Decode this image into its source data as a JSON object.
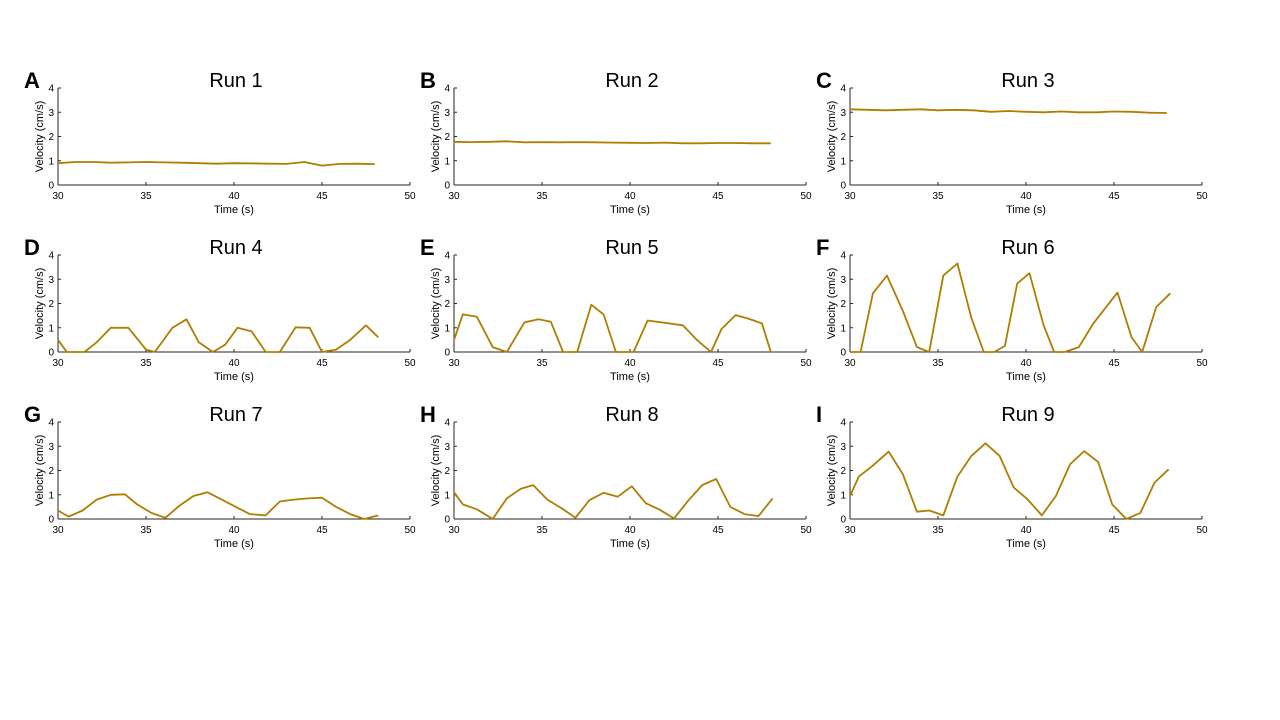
{
  "colors": {
    "series": "#b07d00",
    "axis": "#262626"
  },
  "chart_data": [
    {
      "letter": "A",
      "title": "Run 1",
      "type": "line",
      "xlabel": "Time (s)",
      "ylabel": "Velocity (cm/s)",
      "xlim": [
        30,
        50
      ],
      "ylim": [
        0,
        4
      ],
      "xticks": [
        30,
        35,
        40,
        45,
        50
      ],
      "yticks": [
        0,
        1,
        2,
        3,
        4
      ],
      "grid": false,
      "x": [
        30,
        31,
        32,
        33,
        34,
        35,
        36,
        37,
        38,
        39,
        40,
        41,
        42,
        43,
        44,
        45,
        46,
        47,
        48
      ],
      "y": [
        0.9,
        0.95,
        0.95,
        0.92,
        0.93,
        0.95,
        0.93,
        0.92,
        0.9,
        0.88,
        0.9,
        0.89,
        0.88,
        0.87,
        0.95,
        0.8,
        0.87,
        0.88,
        0.86
      ]
    },
    {
      "letter": "B",
      "title": "Run 2",
      "type": "line",
      "xlabel": "Time (s)",
      "ylabel": "Velocity (cm/s)",
      "xlim": [
        30,
        50
      ],
      "ylim": [
        0,
        4
      ],
      "xticks": [
        30,
        35,
        40,
        45,
        50
      ],
      "yticks": [
        0,
        1,
        2,
        3,
        4
      ],
      "grid": false,
      "x": [
        30,
        31,
        32,
        33,
        34,
        35,
        36,
        37,
        38,
        39,
        40,
        41,
        42,
        43,
        44,
        45,
        46,
        47,
        48
      ],
      "y": [
        1.78,
        1.77,
        1.78,
        1.8,
        1.76,
        1.77,
        1.76,
        1.77,
        1.76,
        1.75,
        1.74,
        1.73,
        1.75,
        1.72,
        1.72,
        1.73,
        1.73,
        1.72,
        1.72
      ]
    },
    {
      "letter": "C",
      "title": "Run 3",
      "type": "line",
      "xlabel": "Time (s)",
      "ylabel": "Velocity (cm/s)",
      "xlim": [
        30,
        50
      ],
      "ylim": [
        0,
        4
      ],
      "xticks": [
        30,
        35,
        40,
        45,
        50
      ],
      "yticks": [
        0,
        1,
        2,
        3,
        4
      ],
      "grid": false,
      "x": [
        30,
        31,
        32,
        33,
        34,
        35,
        36,
        37,
        38,
        39,
        40,
        41,
        42,
        43,
        44,
        45,
        46,
        47,
        48
      ],
      "y": [
        3.12,
        3.1,
        3.08,
        3.1,
        3.12,
        3.08,
        3.1,
        3.08,
        3.02,
        3.05,
        3.02,
        3.0,
        3.03,
        3.0,
        3.0,
        3.03,
        3.02,
        2.98,
        2.97
      ]
    },
    {
      "letter": "D",
      "title": "Run 4",
      "type": "line",
      "xlabel": "Time (s)",
      "ylabel": "Velocity (cm/s)",
      "xlim": [
        30,
        50
      ],
      "ylim": [
        0,
        4
      ],
      "xticks": [
        30,
        35,
        40,
        45,
        50
      ],
      "yticks": [
        0,
        1,
        2,
        3,
        4
      ],
      "grid": false,
      "x": [
        30,
        30.5,
        31.5,
        32.2,
        33,
        34,
        35,
        35.5,
        36.5,
        37.3,
        38,
        38.8,
        39.5,
        40.2,
        41,
        41.8,
        42.6,
        43.5,
        44.3,
        45,
        45.8,
        46.6,
        47.5,
        48.2
      ],
      "y": [
        0.5,
        0,
        0,
        0.4,
        1.0,
        1.0,
        0.1,
        0,
        1.0,
        1.35,
        0.4,
        0,
        0.3,
        1.0,
        0.85,
        0,
        0,
        1.02,
        1.0,
        0,
        0.1,
        0.5,
        1.1,
        0.6
      ]
    },
    {
      "letter": "E",
      "title": "Run 5",
      "type": "line",
      "xlabel": "Time (s)",
      "ylabel": "Velocity (cm/s)",
      "xlim": [
        30,
        50
      ],
      "ylim": [
        0,
        4
      ],
      "xticks": [
        30,
        35,
        40,
        45,
        50
      ],
      "yticks": [
        0,
        1,
        2,
        3,
        4
      ],
      "grid": false,
      "x": [
        30,
        30.5,
        31.3,
        32.2,
        33,
        34,
        34.8,
        35.5,
        36.2,
        37,
        37.8,
        38.5,
        39.2,
        40.2,
        41,
        42,
        43,
        43.8,
        44.6,
        45.2,
        46,
        46.7,
        47.5,
        48
      ],
      "y": [
        0.5,
        1.55,
        1.45,
        0.2,
        0,
        1.22,
        1.35,
        1.25,
        0,
        0,
        1.95,
        1.55,
        0,
        0,
        1.3,
        1.2,
        1.1,
        0.5,
        0,
        0.95,
        1.52,
        1.38,
        1.18,
        0
      ]
    },
    {
      "letter": "F",
      "title": "Run 6",
      "type": "line",
      "xlabel": "Time (s)",
      "ylabel": "Velocity (cm/s)",
      "xlim": [
        30,
        50
      ],
      "ylim": [
        0,
        4
      ],
      "xticks": [
        30,
        35,
        40,
        45,
        50
      ],
      "yticks": [
        0,
        1,
        2,
        3,
        4
      ],
      "grid": false,
      "x": [
        30,
        30.6,
        31.3,
        32.1,
        33,
        33.8,
        34.5,
        35.3,
        36.1,
        36.9,
        37.6,
        38.2,
        38.8,
        39.5,
        40.2,
        41,
        41.6,
        42.2,
        43,
        43.8,
        44.6,
        45.2,
        46,
        46.6,
        47.4,
        48.2
      ],
      "y": [
        0,
        0,
        2.42,
        3.15,
        1.7,
        0.2,
        0,
        3.15,
        3.65,
        1.4,
        0,
        0,
        0.25,
        2.82,
        3.25,
        1.1,
        0,
        0,
        0.2,
        1.15,
        1.9,
        2.45,
        0.6,
        0,
        1.85,
        2.42
      ]
    },
    {
      "letter": "G",
      "title": "Run 7",
      "type": "line",
      "xlabel": "Time (s)",
      "ylabel": "Velocity (cm/s)",
      "xlim": [
        30,
        50
      ],
      "ylim": [
        0,
        4
      ],
      "xticks": [
        30,
        35,
        40,
        45,
        50
      ],
      "yticks": [
        0,
        1,
        2,
        3,
        4
      ],
      "grid": false,
      "x": [
        30,
        30.6,
        31.4,
        32.2,
        33,
        33.8,
        34.5,
        35.3,
        36.1,
        36.9,
        37.7,
        38.5,
        39.3,
        40.1,
        40.9,
        41.8,
        42.6,
        43.4,
        44.2,
        45,
        45.8,
        46.6,
        47.4,
        48.2
      ],
      "y": [
        0.35,
        0.1,
        0.35,
        0.8,
        1.0,
        1.02,
        0.6,
        0.25,
        0.05,
        0.55,
        0.95,
        1.1,
        0.8,
        0.5,
        0.2,
        0.15,
        0.72,
        0.8,
        0.85,
        0.88,
        0.5,
        0.2,
        0,
        0.15
      ]
    },
    {
      "letter": "H",
      "title": "Run 8",
      "type": "line",
      "xlabel": "Time (s)",
      "ylabel": "Velocity (cm/s)",
      "xlim": [
        30,
        50
      ],
      "ylim": [
        0,
        4
      ],
      "xticks": [
        30,
        35,
        40,
        45,
        50
      ],
      "yticks": [
        0,
        1,
        2,
        3,
        4
      ],
      "grid": false,
      "x": [
        30,
        30.5,
        31.3,
        32.2,
        33,
        33.8,
        34.5,
        35.3,
        36.1,
        36.9,
        37.7,
        38.5,
        39.3,
        40.1,
        40.9,
        41.7,
        42.5,
        43.3,
        44.1,
        44.9,
        45.7,
        46.5,
        47.3,
        48.1
      ],
      "y": [
        1.1,
        0.6,
        0.4,
        0,
        0.85,
        1.25,
        1.4,
        0.8,
        0.45,
        0.05,
        0.78,
        1.08,
        0.92,
        1.35,
        0.65,
        0.38,
        0.02,
        0.75,
        1.4,
        1.65,
        0.5,
        0.2,
        0.12,
        0.85
      ]
    },
    {
      "letter": "I",
      "title": "Run 9",
      "type": "line",
      "xlabel": "Time (s)",
      "ylabel": "Velocity (cm/s)",
      "xlim": [
        30,
        50
      ],
      "ylim": [
        0,
        4
      ],
      "xticks": [
        30,
        35,
        40,
        45,
        50
      ],
      "yticks": [
        0,
        1,
        2,
        3,
        4
      ],
      "grid": false,
      "x": [
        30,
        30.5,
        31.3,
        32.2,
        33,
        33.8,
        34.5,
        35.3,
        36.1,
        36.9,
        37.7,
        38.5,
        39.3,
        40.1,
        40.9,
        41.7,
        42.5,
        43.3,
        44.1,
        44.9,
        45.7,
        46.5,
        47.3,
        48.1
      ],
      "y": [
        0.95,
        1.75,
        2.2,
        2.78,
        1.85,
        0.3,
        0.35,
        0.15,
        1.75,
        2.6,
        3.12,
        2.6,
        1.3,
        0.8,
        0.15,
        0.95,
        2.25,
        2.8,
        2.35,
        0.6,
        0,
        0.25,
        1.5,
        2.05
      ]
    }
  ]
}
